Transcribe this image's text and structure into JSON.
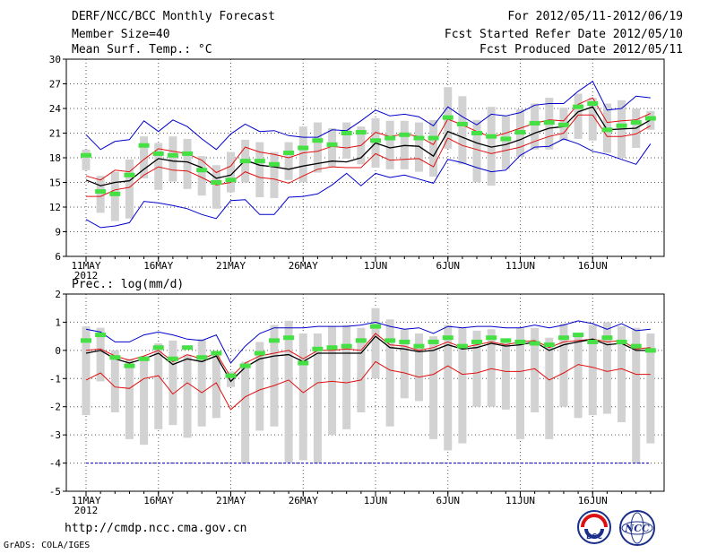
{
  "header": {
    "title": "DERF/NCC/BCC Monthly Forecast",
    "member_size": "Member Size=40",
    "variable": "Mean Surf. Temp.: °C",
    "period": "For 2012/05/11-2012/06/19",
    "started": "Fcst Started Refer Date 2012/05/10",
    "produced": "Fcst Produced Date 2012/05/11"
  },
  "footer": {
    "url": "http://cmdp.ncc.cma.gov.cn",
    "credit": "GrADS: COLA/IGES",
    "logo_bcc": "BCC",
    "logo_ncc": "NCC"
  },
  "colors": {
    "box": "#d2d2d2",
    "mean": "#000000",
    "inner": "#e01010",
    "outer": "#0000cc",
    "marker": "#44e044",
    "grid": "#555555"
  },
  "chart_data": [
    {
      "type": "line",
      "title": "Mean Surf. Temp.: °C",
      "ylim": [
        6,
        30
      ],
      "yticks": [
        6,
        9,
        12,
        15,
        18,
        21,
        24,
        27,
        30
      ],
      "xtick_labels": [
        "11MAY",
        "16MAY",
        "21MAY",
        "26MAY",
        "1JUN",
        "6JUN",
        "11JUN",
        "16JUN"
      ],
      "xtick_days": [
        1,
        6,
        11,
        16,
        21,
        26,
        31,
        36
      ],
      "year_label": "2012",
      "days": [
        1,
        2,
        3,
        4,
        5,
        6,
        7,
        8,
        9,
        10,
        11,
        12,
        13,
        14,
        15,
        16,
        17,
        18,
        19,
        20,
        21,
        22,
        23,
        24,
        25,
        26,
        27,
        28,
        29,
        30,
        31,
        32,
        33,
        34,
        35,
        36,
        37,
        38,
        39,
        40
      ],
      "series": [
        {
          "name": "mean",
          "values": [
            15.3,
            14.6,
            15.0,
            15.2,
            16.6,
            17.9,
            17.6,
            17.5,
            16.8,
            15.5,
            15.9,
            17.7,
            17.1,
            16.9,
            16.6,
            17.0,
            17.3,
            17.6,
            17.5,
            18.0,
            19.8,
            19.2,
            19.5,
            19.4,
            18.2,
            21.2,
            20.5,
            19.8,
            19.3,
            19.6,
            20.2,
            21.0,
            21.6,
            21.8,
            23.6,
            24.2,
            21.4,
            21.5,
            21.6,
            22.6
          ]
        },
        {
          "name": "upper_red",
          "values": [
            15.8,
            15.3,
            16.5,
            16.3,
            17.8,
            19.1,
            18.8,
            18.5,
            17.7,
            16.2,
            17.0,
            19.3,
            18.7,
            18.4,
            18.0,
            18.6,
            18.8,
            19.4,
            19.2,
            19.5,
            21.1,
            20.6,
            20.9,
            20.6,
            19.6,
            22.7,
            22.0,
            21.2,
            20.5,
            21.0,
            21.6,
            22.2,
            22.6,
            22.5,
            24.5,
            25.3,
            22.3,
            22.5,
            22.6,
            23.4
          ]
        },
        {
          "name": "lower_red",
          "values": [
            13.3,
            13.3,
            14.1,
            14.4,
            15.9,
            16.9,
            16.5,
            16.4,
            15.6,
            14.7,
            15.0,
            16.3,
            15.6,
            15.4,
            14.9,
            15.8,
            16.6,
            16.9,
            16.8,
            16.8,
            18.5,
            17.7,
            17.8,
            17.9,
            16.9,
            20.4,
            19.5,
            19.0,
            18.5,
            18.9,
            19.3,
            20.0,
            20.6,
            21.0,
            23.2,
            23.2,
            20.6,
            20.6,
            20.9,
            21.9
          ]
        },
        {
          "name": "upper_blue",
          "values": [
            20.8,
            19.0,
            20.0,
            20.2,
            22.5,
            21.2,
            22.6,
            21.8,
            20.3,
            19.0,
            20.9,
            22.1,
            21.2,
            21.3,
            20.7,
            20.5,
            20.5,
            21.4,
            21.3,
            22.5,
            23.8,
            23.1,
            23.3,
            23.0,
            21.9,
            24.2,
            23.0,
            22.0,
            23.3,
            23.1,
            23.5,
            24.4,
            24.6,
            24.6,
            26.1,
            27.3,
            23.8,
            24.0,
            25.5,
            25.3
          ]
        },
        {
          "name": "lower_blue",
          "values": [
            10.5,
            9.5,
            9.7,
            10.1,
            12.7,
            12.5,
            12.2,
            11.8,
            11.1,
            10.6,
            12.8,
            12.9,
            11.1,
            11.1,
            13.2,
            13.3,
            13.6,
            14.7,
            16.1,
            14.6,
            16.1,
            15.6,
            15.9,
            15.4,
            14.9,
            17.8,
            17.4,
            16.8,
            16.3,
            16.5,
            18.3,
            19.3,
            19.4,
            20.3,
            19.7,
            18.8,
            18.4,
            17.8,
            17.2,
            19.7
          ]
        },
        {
          "name": "marker",
          "values": [
            18.3,
            13.9,
            13.6,
            15.9,
            19.5,
            18.5,
            18.3,
            18.5,
            16.5,
            15.0,
            15.3,
            17.6,
            17.6,
            17.2,
            18.6,
            19.2,
            20.1,
            19.6,
            21.0,
            21.1,
            20.1,
            20.4,
            20.8,
            20.4,
            20.4,
            22.9,
            22.1,
            21.0,
            20.6,
            20.3,
            21.1,
            22.2,
            22.3,
            22.0,
            24.2,
            24.6,
            21.4,
            21.9,
            22.3,
            22.8
          ]
        },
        {
          "name": "box_top",
          "values": [
            19.0,
            15.8,
            16.3,
            17.8,
            20.6,
            19.8,
            20.6,
            20.3,
            18.2,
            17.1,
            18.7,
            20.2,
            19.9,
            18.7,
            19.9,
            21.8,
            22.3,
            21.6,
            22.3,
            21.8,
            22.8,
            22.5,
            22.5,
            22.3,
            22.6,
            26.6,
            25.5,
            22.6,
            24.2,
            23.1,
            23.9,
            24.6,
            25.3,
            24.1,
            25.8,
            25.3,
            24.6,
            25.0,
            24.0,
            23.7
          ]
        },
        {
          "name": "box_bottom",
          "values": [
            16.5,
            11.3,
            10.3,
            10.6,
            15.5,
            14.1,
            15.1,
            14.2,
            13.4,
            11.8,
            13.8,
            15.0,
            13.2,
            13.1,
            15.3,
            15.0,
            16.2,
            16.9,
            17.9,
            17.2,
            16.8,
            16.6,
            16.6,
            16.3,
            15.7,
            19.1,
            17.2,
            15.0,
            14.6,
            16.6,
            18.1,
            19.0,
            19.0,
            20.1,
            20.3,
            20.1,
            18.6,
            18.0,
            19.2,
            21.4
          ]
        }
      ]
    },
    {
      "type": "line",
      "title": "Prec.: log(mm/d)",
      "ylim": [
        -5,
        2
      ],
      "yticks": [
        -5,
        -4,
        -3,
        -2,
        -1,
        0,
        1,
        2
      ],
      "xtick_labels": [
        "11MAY",
        "16MAY",
        "21MAY",
        "26MAY",
        "1JUN",
        "6JUN",
        "11JUN",
        "16JUN"
      ],
      "xtick_days": [
        1,
        6,
        11,
        16,
        21,
        26,
        31,
        36
      ],
      "year_label": "2012",
      "reference_line": -4,
      "days": [
        1,
        2,
        3,
        4,
        5,
        6,
        7,
        8,
        9,
        10,
        11,
        12,
        13,
        14,
        15,
        16,
        17,
        18,
        19,
        20,
        21,
        22,
        23,
        24,
        25,
        26,
        27,
        28,
        29,
        30,
        31,
        32,
        33,
        34,
        35,
        36,
        37,
        38,
        39,
        40
      ],
      "series": [
        {
          "name": "mean",
          "values": [
            -0.1,
            0.0,
            -0.3,
            -0.45,
            -0.3,
            -0.1,
            -0.5,
            -0.3,
            -0.4,
            -0.2,
            -1.1,
            -0.6,
            -0.3,
            -0.2,
            -0.15,
            -0.4,
            -0.1,
            -0.1,
            -0.1,
            -0.1,
            0.5,
            0.1,
            0.05,
            -0.05,
            0.0,
            0.2,
            0.05,
            0.1,
            0.25,
            0.15,
            0.2,
            0.3,
            0.0,
            0.2,
            0.3,
            0.4,
            0.2,
            0.25,
            0.0,
            0.0
          ]
        },
        {
          "name": "upper_red",
          "values": [
            0.0,
            0.05,
            -0.2,
            -0.35,
            -0.2,
            0.0,
            -0.4,
            -0.15,
            -0.3,
            -0.1,
            -0.95,
            -0.45,
            -0.2,
            -0.1,
            0.0,
            -0.3,
            0.0,
            0.0,
            0.05,
            0.0,
            0.6,
            0.2,
            0.15,
            0.0,
            0.1,
            0.3,
            0.1,
            0.2,
            0.3,
            0.2,
            0.3,
            0.35,
            0.1,
            0.3,
            0.35,
            0.4,
            0.3,
            0.35,
            0.05,
            0.1
          ]
        },
        {
          "name": "lower_red",
          "values": [
            -1.05,
            -0.8,
            -1.3,
            -1.35,
            -1.0,
            -0.9,
            -1.55,
            -1.15,
            -1.5,
            -1.15,
            -2.1,
            -1.65,
            -1.4,
            -1.25,
            -1.05,
            -1.5,
            -1.15,
            -1.1,
            -1.15,
            -1.05,
            -0.4,
            -0.7,
            -0.8,
            -0.95,
            -0.85,
            -0.55,
            -0.85,
            -0.8,
            -0.65,
            -0.75,
            -0.75,
            -0.65,
            -1.05,
            -0.8,
            -0.5,
            -0.6,
            -0.75,
            -0.65,
            -0.85,
            -0.85
          ]
        },
        {
          "name": "upper_blue",
          "values": [
            0.75,
            0.65,
            0.3,
            0.3,
            0.55,
            0.65,
            0.55,
            0.4,
            0.35,
            0.55,
            -0.45,
            0.15,
            0.6,
            0.8,
            0.8,
            0.8,
            0.85,
            0.85,
            0.85,
            0.9,
            1.0,
            0.85,
            0.75,
            0.8,
            0.6,
            0.85,
            0.8,
            0.85,
            0.85,
            0.8,
            0.8,
            0.9,
            0.8,
            0.9,
            1.05,
            0.95,
            0.75,
            0.95,
            0.7,
            0.75
          ]
        },
        {
          "name": "marker",
          "values": [
            0.35,
            0.55,
            -0.25,
            -0.55,
            -0.3,
            0.1,
            -0.3,
            0.1,
            -0.25,
            -0.1,
            -0.9,
            -0.55,
            -0.1,
            0.35,
            0.45,
            -0.45,
            0.05,
            0.1,
            0.15,
            0.35,
            0.85,
            0.35,
            0.3,
            0.15,
            0.3,
            0.45,
            0.15,
            0.3,
            0.45,
            0.35,
            0.3,
            0.25,
            0.2,
            0.45,
            0.55,
            0.3,
            0.45,
            0.3,
            0.15,
            0.0
          ]
        },
        {
          "name": "box_top",
          "values": [
            0.85,
            0.8,
            0.0,
            -0.3,
            -0.2,
            0.25,
            0.35,
            -0.15,
            0.4,
            -0.1,
            -0.75,
            -0.4,
            0.3,
            0.9,
            1.05,
            0.6,
            0.6,
            0.85,
            0.9,
            0.8,
            1.5,
            1.1,
            0.75,
            0.6,
            0.5,
            0.9,
            0.8,
            0.7,
            0.75,
            0.35,
            0.8,
            0.8,
            0.45,
            0.95,
            0.6,
            0.9,
            1.0,
            0.85,
            0.8,
            0.6
          ]
        },
        {
          "name": "box_bottom",
          "values": [
            -2.3,
            -1.1,
            -2.2,
            -3.15,
            -3.35,
            -2.8,
            -2.65,
            -3.1,
            -2.7,
            -2.4,
            -1.3,
            -4.0,
            -2.85,
            -2.7,
            -4.0,
            -3.9,
            -4.0,
            -3.0,
            -2.8,
            -2.2,
            -1.0,
            -2.7,
            -1.7,
            -1.8,
            -3.15,
            -3.55,
            -3.3,
            -2.0,
            -2.0,
            -2.1,
            -3.15,
            -2.2,
            -3.15,
            -2.0,
            -2.4,
            -2.3,
            -2.25,
            -2.55,
            -4.0,
            -3.3
          ]
        }
      ]
    }
  ]
}
